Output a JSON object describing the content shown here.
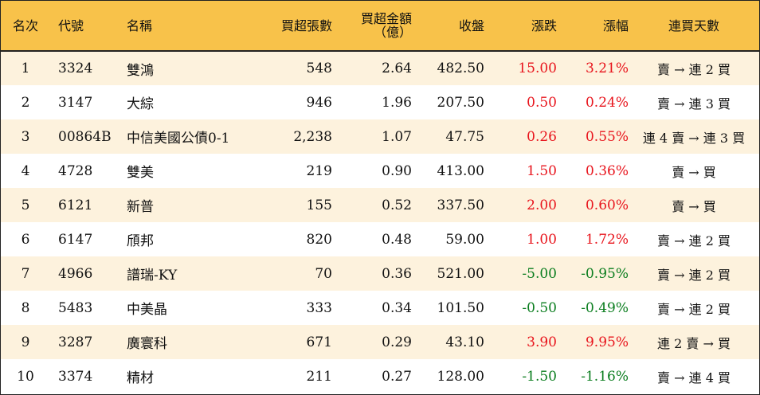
{
  "headers": {
    "rank": "名次",
    "code": "代號",
    "name": "名稱",
    "volume": "買超張數",
    "amount_line1": "買超金額",
    "amount_line2": "（億）",
    "close": "收盤",
    "change": "漲跌",
    "pct": "漲幅",
    "days": "連買天數"
  },
  "colors": {
    "header_bg": "#f8c24a",
    "stripe_bg": "#fdf2dd",
    "up": "#e8141c",
    "down": "#0a7d1e"
  },
  "rows": [
    {
      "rank": "1",
      "code": "3324",
      "name": "雙鴻",
      "volume": "548",
      "amount": "2.64",
      "close": "482.50",
      "change": "15.00",
      "pct": "3.21%",
      "days": "賣 → 連 2 買",
      "dir": "pos"
    },
    {
      "rank": "2",
      "code": "3147",
      "name": "大綜",
      "volume": "946",
      "amount": "1.96",
      "close": "207.50",
      "change": "0.50",
      "pct": "0.24%",
      "days": "賣 → 連 3 買",
      "dir": "pos"
    },
    {
      "rank": "3",
      "code": "00864B",
      "name": "中信美國公債0-1",
      "volume": "2,238",
      "amount": "1.07",
      "close": "47.75",
      "change": "0.26",
      "pct": "0.55%",
      "days": "連 4 賣 → 連 3 買",
      "dir": "pos"
    },
    {
      "rank": "4",
      "code": "4728",
      "name": "雙美",
      "volume": "219",
      "amount": "0.90",
      "close": "413.00",
      "change": "1.50",
      "pct": "0.36%",
      "days": "賣 → 買",
      "dir": "pos"
    },
    {
      "rank": "5",
      "code": "6121",
      "name": "新普",
      "volume": "155",
      "amount": "0.52",
      "close": "337.50",
      "change": "2.00",
      "pct": "0.60%",
      "days": "賣 → 買",
      "dir": "pos"
    },
    {
      "rank": "6",
      "code": "6147",
      "name": "頎邦",
      "volume": "820",
      "amount": "0.48",
      "close": "59.00",
      "change": "1.00",
      "pct": "1.72%",
      "days": "賣 → 連 2 買",
      "dir": "pos"
    },
    {
      "rank": "7",
      "code": "4966",
      "name": "譜瑞-KY",
      "volume": "70",
      "amount": "0.36",
      "close": "521.00",
      "change": "-5.00",
      "pct": "-0.95%",
      "days": "賣 → 連 2 買",
      "dir": "neg"
    },
    {
      "rank": "8",
      "code": "5483",
      "name": "中美晶",
      "volume": "333",
      "amount": "0.34",
      "close": "101.50",
      "change": "-0.50",
      "pct": "-0.49%",
      "days": "賣 → 連 2 買",
      "dir": "neg"
    },
    {
      "rank": "9",
      "code": "3287",
      "name": "廣寰科",
      "volume": "671",
      "amount": "0.29",
      "close": "43.10",
      "change": "3.90",
      "pct": "9.95%",
      "days": "連 2 賣 → 買",
      "dir": "pos"
    },
    {
      "rank": "10",
      "code": "3374",
      "name": "精材",
      "volume": "211",
      "amount": "0.27",
      "close": "128.00",
      "change": "-1.50",
      "pct": "-1.16%",
      "days": "賣 → 連 4 買",
      "dir": "neg"
    }
  ]
}
